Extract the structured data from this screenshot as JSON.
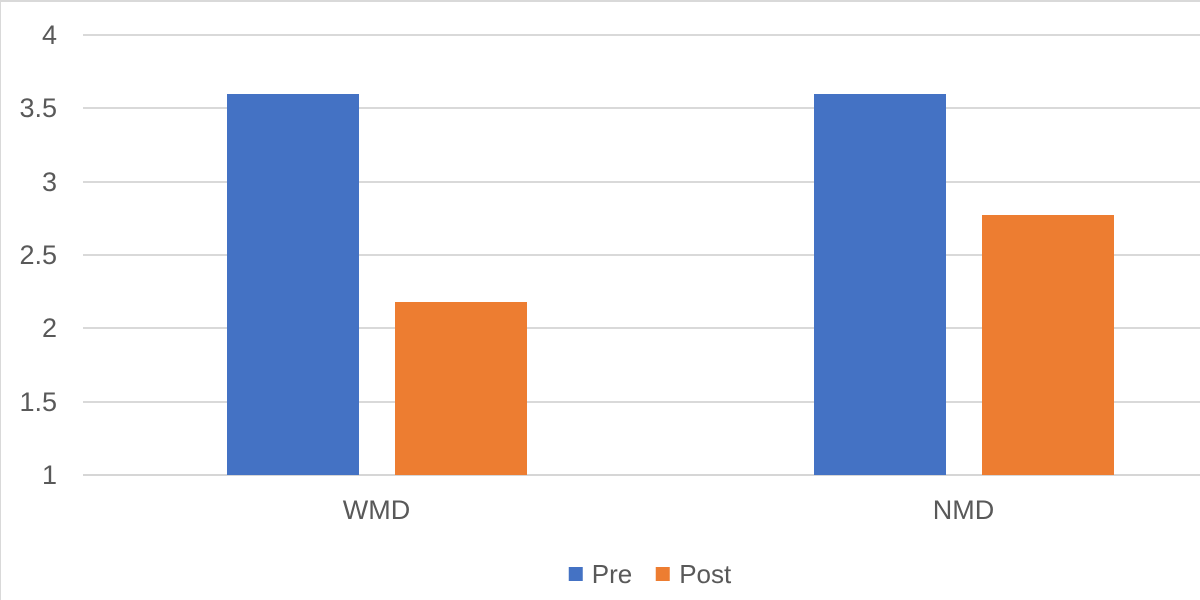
{
  "chart_data": {
    "type": "bar",
    "title": "",
    "xlabel": "",
    "ylabel": "",
    "categories": [
      "WMD",
      "NMD"
    ],
    "series": [
      {
        "name": "Pre",
        "color": "#4472C4",
        "values": [
          3.6,
          3.6
        ]
      },
      {
        "name": "Post",
        "color": "#ED7D31",
        "values": [
          2.18,
          2.77
        ]
      }
    ],
    "y_axis": {
      "min": 1,
      "max": 4,
      "step": 0.5,
      "tick_labels": [
        "4",
        "3.5",
        "3",
        "2.5",
        "2",
        "1.5",
        "1"
      ]
    },
    "grid": true,
    "legend_position": "bottom",
    "colors": {
      "gridline": "#D9D9D9",
      "axis_text": "#595959",
      "background": "#FFFFFF",
      "pre": "#4472C4",
      "post": "#ED7D31"
    }
  }
}
